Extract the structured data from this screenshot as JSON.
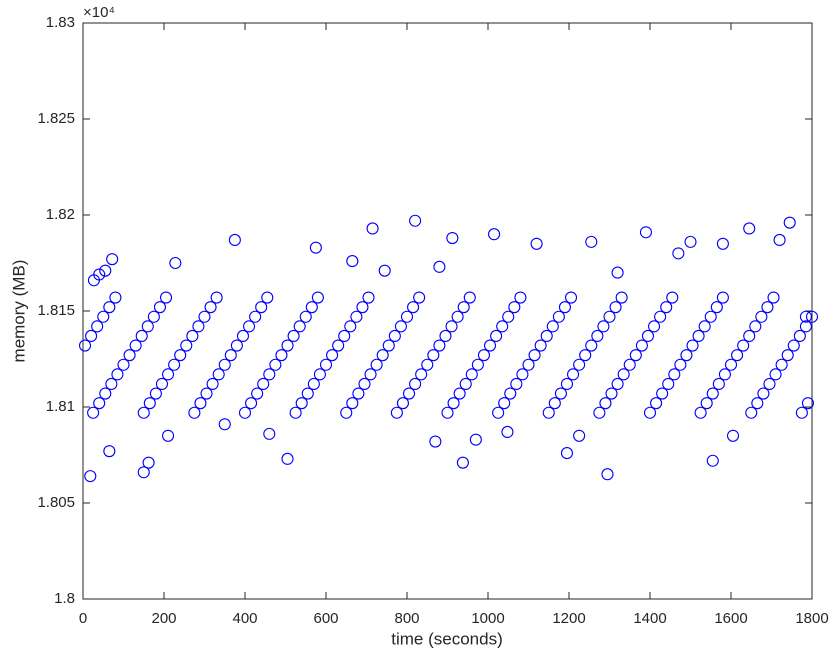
{
  "chart_data": {
    "type": "scatter",
    "xlabel": "time (seconds)",
    "ylabel": "memory (MB)",
    "y_exponent": "×10⁴",
    "color": "#0000ff",
    "xlim": [
      0,
      1800
    ],
    "xticks": [
      0,
      200,
      400,
      600,
      800,
      1000,
      1200,
      1400,
      1600,
      1800
    ],
    "ylim": [
      1.8,
      1.83
    ],
    "yticks": [
      1.8,
      1.805,
      1.81,
      1.815,
      1.82,
      1.825,
      1.83
    ],
    "x": [
      5,
      20,
      35,
      50,
      65,
      80,
      25,
      40,
      55,
      70,
      85,
      100,
      115,
      130,
      145,
      160,
      175,
      190,
      205,
      150,
      165,
      180,
      195,
      210,
      225,
      240,
      255,
      270,
      285,
      300,
      315,
      330,
      275,
      290,
      305,
      320,
      335,
      350,
      365,
      380,
      395,
      410,
      425,
      440,
      455,
      400,
      415,
      430,
      445,
      460,
      475,
      490,
      505,
      520,
      535,
      550,
      565,
      580,
      525,
      540,
      555,
      570,
      585,
      600,
      615,
      630,
      645,
      660,
      675,
      690,
      705,
      650,
      665,
      680,
      695,
      710,
      725,
      740,
      755,
      770,
      785,
      800,
      815,
      830,
      775,
      790,
      805,
      820,
      835,
      850,
      865,
      880,
      895,
      910,
      925,
      940,
      955,
      900,
      915,
      930,
      945,
      960,
      975,
      990,
      1005,
      1020,
      1035,
      1050,
      1065,
      1080,
      1025,
      1040,
      1055,
      1070,
      1085,
      1100,
      1115,
      1130,
      1145,
      1160,
      1175,
      1190,
      1205,
      1150,
      1165,
      1180,
      1195,
      1210,
      1225,
      1240,
      1255,
      1270,
      1285,
      1300,
      1315,
      1330,
      1275,
      1290,
      1305,
      1320,
      1335,
      1350,
      1365,
      1380,
      1395,
      1410,
      1425,
      1440,
      1455,
      1400,
      1415,
      1430,
      1445,
      1460,
      1475,
      1490,
      1505,
      1520,
      1535,
      1550,
      1565,
      1580,
      1525,
      1540,
      1555,
      1570,
      1585,
      1600,
      1615,
      1630,
      1645,
      1660,
      1675,
      1690,
      1705,
      1650,
      1665,
      1680,
      1695,
      1710,
      1725,
      1740,
      1755,
      1770,
      1785,
      1800,
      1775,
      1790,
      18,
      27,
      40,
      55,
      72,
      65,
      150,
      162,
      210,
      228,
      350,
      375,
      460,
      505,
      575,
      665,
      715,
      745,
      820,
      870,
      880,
      912,
      938,
      970,
      1015,
      1048,
      1120,
      1195,
      1225,
      1255,
      1295,
      1320,
      1390,
      1470,
      1500,
      1555,
      1580,
      1605,
      1645,
      1720,
      1745,
      1785
    ],
    "values": [
      1.8132,
      1.8137,
      1.8142,
      1.8147,
      1.8152,
      1.8157,
      1.8097,
      1.8102,
      1.8107,
      1.8112,
      1.8117,
      1.8122,
      1.8127,
      1.8132,
      1.8137,
      1.8142,
      1.8147,
      1.8152,
      1.8157,
      1.8097,
      1.8102,
      1.8107,
      1.8112,
      1.8117,
      1.8122,
      1.8127,
      1.8132,
      1.8137,
      1.8142,
      1.8147,
      1.8152,
      1.8157,
      1.8097,
      1.8102,
      1.8107,
      1.8112,
      1.8117,
      1.8122,
      1.8127,
      1.8132,
      1.8137,
      1.8142,
      1.8147,
      1.8152,
      1.8157,
      1.8097,
      1.8102,
      1.8107,
      1.8112,
      1.8117,
      1.8122,
      1.8127,
      1.8132,
      1.8137,
      1.8142,
      1.8147,
      1.8152,
      1.8157,
      1.8097,
      1.8102,
      1.8107,
      1.8112,
      1.8117,
      1.8122,
      1.8127,
      1.8132,
      1.8137,
      1.8142,
      1.8147,
      1.8152,
      1.8157,
      1.8097,
      1.8102,
      1.8107,
      1.8112,
      1.8117,
      1.8122,
      1.8127,
      1.8132,
      1.8137,
      1.8142,
      1.8147,
      1.8152,
      1.8157,
      1.8097,
      1.8102,
      1.8107,
      1.8112,
      1.8117,
      1.8122,
      1.8127,
      1.8132,
      1.8137,
      1.8142,
      1.8147,
      1.8152,
      1.8157,
      1.8097,
      1.8102,
      1.8107,
      1.8112,
      1.8117,
      1.8122,
      1.8127,
      1.8132,
      1.8137,
      1.8142,
      1.8147,
      1.8152,
      1.8157,
      1.8097,
      1.8102,
      1.8107,
      1.8112,
      1.8117,
      1.8122,
      1.8127,
      1.8132,
      1.8137,
      1.8142,
      1.8147,
      1.8152,
      1.8157,
      1.8097,
      1.8102,
      1.8107,
      1.8112,
      1.8117,
      1.8122,
      1.8127,
      1.8132,
      1.8137,
      1.8142,
      1.8147,
      1.8152,
      1.8157,
      1.8097,
      1.8102,
      1.8107,
      1.8112,
      1.8117,
      1.8122,
      1.8127,
      1.8132,
      1.8137,
      1.8142,
      1.8147,
      1.8152,
      1.8157,
      1.8097,
      1.8102,
      1.8107,
      1.8112,
      1.8117,
      1.8122,
      1.8127,
      1.8132,
      1.8137,
      1.8142,
      1.8147,
      1.8152,
      1.8157,
      1.8097,
      1.8102,
      1.8107,
      1.8112,
      1.8117,
      1.8122,
      1.8127,
      1.8132,
      1.8137,
      1.8142,
      1.8147,
      1.8152,
      1.8157,
      1.8097,
      1.8102,
      1.8107,
      1.8112,
      1.8117,
      1.8122,
      1.8127,
      1.8132,
      1.8137,
      1.8142,
      1.8147,
      1.8097,
      1.8102,
      1.8064,
      1.8166,
      1.8169,
      1.8171,
      1.8177,
      1.8077,
      1.8066,
      1.8071,
      1.8085,
      1.8175,
      1.8091,
      1.8187,
      1.8086,
      1.8073,
      1.8183,
      1.8176,
      1.8193,
      1.8171,
      1.8197,
      1.8082,
      1.8173,
      1.8188,
      1.8071,
      1.8083,
      1.819,
      1.8087,
      1.8185,
      1.8076,
      1.8085,
      1.8186,
      1.8065,
      1.817,
      1.8191,
      1.818,
      1.8186,
      1.8072,
      1.8185,
      1.8085,
      1.8193,
      1.8187,
      1.8196,
      1.8147
    ]
  }
}
